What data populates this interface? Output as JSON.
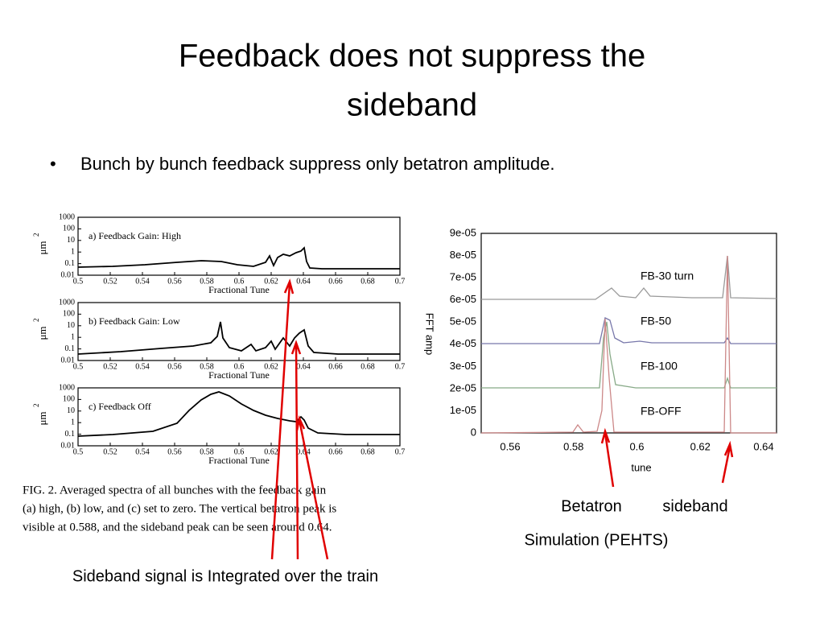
{
  "title": {
    "line1": "Feedback does not suppress the",
    "line2": "sideband"
  },
  "bullet": "Bunch by bunch feedback suppress only betatron amplitude.",
  "left_plots": {
    "yticks": [
      "1000",
      "100",
      "10",
      "1",
      "0.1",
      "0.01"
    ],
    "xticks": [
      "0.5",
      "0.52",
      "0.54",
      "0.56",
      "0.58",
      "0.6",
      "0.62",
      "0.64",
      "0.66",
      "0.68",
      "0.7"
    ],
    "xlabel": "Fractional Tune",
    "ylabel": "μm",
    "ylabel_sup": "2",
    "panels": [
      "a) Feedback Gain:  High",
      "b) Feedback Gain:  Low",
      "c) Feedback Off"
    ]
  },
  "caption": [
    "FIG. 2.    Averaged spectra of all bunches with the feedback gain",
    "(a) high, (b) low, and (c) set to zero. The vertical betatron peak is",
    "visible at 0.588, and the sideband peak can be seen around 0.64."
  ],
  "right_plot": {
    "yticks": [
      "9e-05",
      "8e-05",
      "7e-05",
      "6e-05",
      "5e-05",
      "4e-05",
      "3e-05",
      "2e-05",
      "1e-05",
      "0"
    ],
    "xticks": [
      "0.56",
      "0.58",
      "0.6",
      "0.62",
      "0.64"
    ],
    "xlabel": "tune",
    "ylabel": "FFT amp",
    "series_labels": [
      "FB-30 turn",
      "FB-50",
      "FB-100",
      "FB-OFF"
    ]
  },
  "annotations": {
    "betatron": "Betatron",
    "sideband": "sideband",
    "simulation": "Simulation (PEHTS)",
    "integrated": "Sideband signal is Integrated over the train"
  }
}
